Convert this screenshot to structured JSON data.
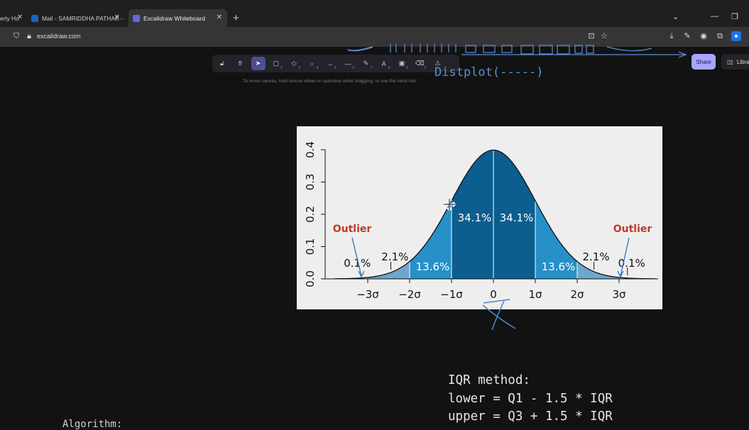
{
  "browser": {
    "tabs": [
      {
        "label": "erly Ho",
        "active": false
      },
      {
        "label": "Mail - SAMRIDDHA PATHAK - O",
        "active": false
      },
      {
        "label": "Excalidraw Whiteboard",
        "active": true
      }
    ],
    "new_tab": "+",
    "url": "excalidraw.com"
  },
  "toolbar": {
    "tools": [
      {
        "name": "lock",
        "icon": "lock-icon",
        "shortcut": ""
      },
      {
        "name": "hand",
        "icon": "hand-icon",
        "shortcut": ""
      },
      {
        "name": "selection",
        "icon": "pointer-icon",
        "shortcut": "1",
        "active": true
      },
      {
        "name": "rectangle",
        "icon": "rectangle-icon",
        "shortcut": "2"
      },
      {
        "name": "diamond",
        "icon": "diamond-icon",
        "shortcut": "3"
      },
      {
        "name": "ellipse",
        "icon": "ellipse-icon",
        "shortcut": "4"
      },
      {
        "name": "arrow",
        "icon": "arrow-icon",
        "shortcut": "5"
      },
      {
        "name": "line",
        "icon": "line-icon",
        "shortcut": "6"
      },
      {
        "name": "draw",
        "icon": "pencil-icon",
        "shortcut": "7"
      },
      {
        "name": "text",
        "icon": "text-icon",
        "shortcut": "8"
      },
      {
        "name": "image",
        "icon": "image-icon",
        "shortcut": "9"
      },
      {
        "name": "eraser",
        "icon": "eraser-icon",
        "shortcut": "0"
      },
      {
        "name": "more",
        "icon": "shapes-icon",
        "shortcut": ""
      }
    ],
    "hint": "To move canvas, hold mouse wheel or spacebar while dragging, or use the hand tool"
  },
  "header_actions": {
    "share_label": "Share",
    "library_label": "Library"
  },
  "canvas_text": {
    "distplot": "Distplot(-----)",
    "iqr_lines": [
      "IQR method:",
      "lower = Q1 - 1.5 * IQR",
      "upper = Q3 + 1.5 * IQR"
    ],
    "algorithm": "Algorithm:"
  },
  "chart_data": {
    "type": "area",
    "curve": "normal density",
    "x_ticks": [
      "−3σ",
      "−2σ",
      "−1σ",
      "0",
      "1σ",
      "2σ",
      "3σ"
    ],
    "y_ticks": [
      "0.0",
      "0.1",
      "0.2",
      "0.3",
      "0.4"
    ],
    "ylim": [
      0,
      0.4
    ],
    "xlim": [
      -3.8,
      3.9
    ],
    "regions": [
      {
        "from": -1,
        "to": 0,
        "label": "34.1%",
        "color": "#0b5e8e"
      },
      {
        "from": 0,
        "to": 1,
        "label": "34.1%",
        "color": "#0b5e8e"
      },
      {
        "from": -2,
        "to": -1,
        "label": "13.6%",
        "color": "#2690c8"
      },
      {
        "from": 1,
        "to": 2,
        "label": "13.6%",
        "color": "#2690c8"
      },
      {
        "from": -3,
        "to": -2,
        "label": "2.1%",
        "color": "#6fa6cc"
      },
      {
        "from": 2,
        "to": 3,
        "label": "2.1%",
        "color": "#6fa6cc"
      },
      {
        "from": -3.8,
        "to": -3,
        "label": "0.1%",
        "color": "#a7c3d8"
      },
      {
        "from": 3,
        "to": 3.9,
        "label": "0.1%",
        "color": "#a7c3d8"
      }
    ],
    "annotations": [
      {
        "text": "Outlier",
        "side": "left",
        "color": "#c0392b"
      },
      {
        "text": "Outlier",
        "side": "right",
        "color": "#c0392b"
      }
    ]
  }
}
